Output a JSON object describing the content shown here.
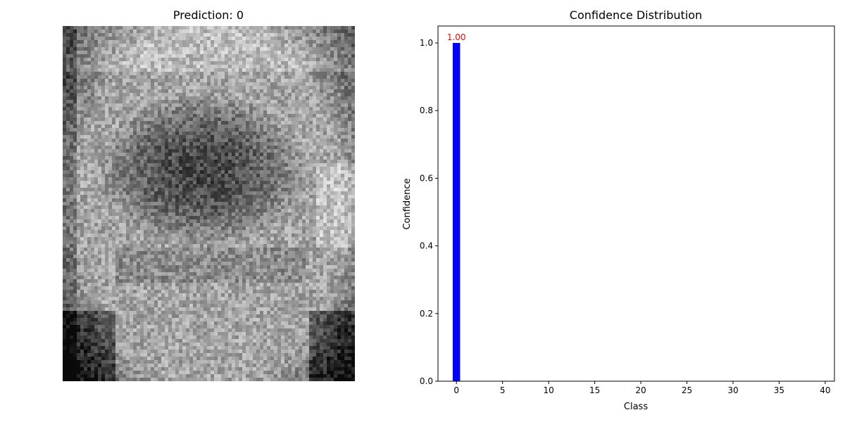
{
  "left_panel": {
    "title": "Prediction: 0"
  },
  "chart_data": {
    "type": "bar",
    "title": "Confidence Distribution",
    "xlabel": "Class",
    "ylabel": "Confidence",
    "x": [
      0
    ],
    "values": [
      1.0
    ],
    "data_labels": [
      "1.00"
    ],
    "xlim": [
      -2,
      41
    ],
    "ylim": [
      0,
      1.05
    ],
    "xticks": [
      0,
      5,
      10,
      15,
      20,
      25,
      30,
      35,
      40
    ],
    "yticks": [
      "0.0",
      "0.2",
      "0.4",
      "0.6",
      "0.8",
      "1.0"
    ],
    "bar_color": "#0000ff",
    "label_color": "#ff0000",
    "grid": false
  }
}
